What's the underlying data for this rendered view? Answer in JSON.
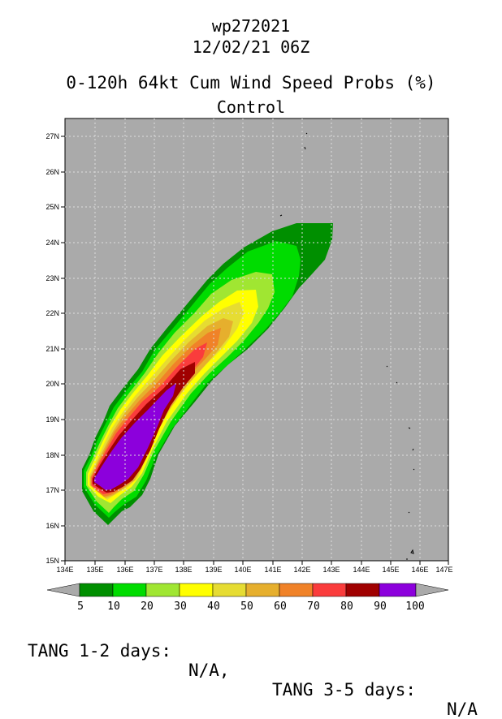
{
  "header": {
    "storm_id": "wp272021",
    "valid_time": "12/02/21 06Z",
    "product_title": "0-120h 64kt Cum Wind Speed Probs (%)",
    "product_subtitle": "Control"
  },
  "map": {
    "lon_range": [
      134,
      147
    ],
    "lat_range": [
      15,
      27.5
    ],
    "lat_labels": [
      "15N",
      "16N",
      "17N",
      "18N",
      "19N",
      "20N",
      "21N",
      "22N",
      "23N",
      "24N",
      "25N",
      "26N",
      "27N"
    ],
    "lon_labels": [
      "134E",
      "135E",
      "136E",
      "137E",
      "138E",
      "139E",
      "140E",
      "141E",
      "142E",
      "143E",
      "144E",
      "145E",
      "146E",
      "147E"
    ],
    "background_color": "#aaaaaa",
    "probability_levels": [
      5,
      10,
      20,
      30,
      40,
      50,
      60,
      70,
      80,
      90
    ]
  },
  "colorbar": {
    "labels": [
      "5",
      "10",
      "20",
      "30",
      "40",
      "50",
      "60",
      "70",
      "80",
      "90",
      "100"
    ],
    "colors": [
      "#008f00",
      "#00dc00",
      "#a0e632",
      "#ffff00",
      "#e6dc32",
      "#e6af2d",
      "#f08228",
      "#fa3c3c",
      "#a00000",
      "#8c00dc"
    ]
  },
  "footer": {
    "tang_12_label": "TANG 1-2 days:",
    "tang_12_value": "N/A,",
    "tang_35_label": "TANG 3-5 days:",
    "tang_35_value": "N/A"
  }
}
